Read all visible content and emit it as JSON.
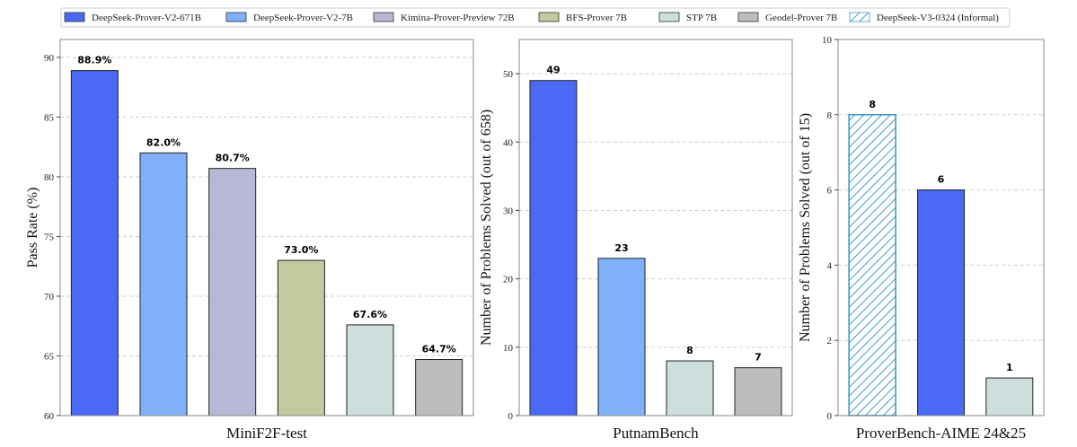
{
  "legend": [
    {
      "name": "DeepSeek-Prover-V2-671B",
      "color": "#4a69f5",
      "hatch": false
    },
    {
      "name": "DeepSeek-Prover-V2-7B",
      "color": "#7fb0f9",
      "hatch": false
    },
    {
      "name": "Kimina-Prover-Preview 72B",
      "color": "#b8b8d6",
      "hatch": false
    },
    {
      "name": "BFS-Prover 7B",
      "color": "#c5c9a0",
      "hatch": false
    },
    {
      "name": "STP 7B",
      "color": "#cddfdd",
      "hatch": false
    },
    {
      "name": "Geodel-Prover 7B",
      "color": "#bdbdbd",
      "hatch": false
    },
    {
      "name": "DeepSeek-V3-0324 (Informal)",
      "color": "#3f9cc9",
      "hatch": true
    }
  ],
  "chart_data": [
    {
      "type": "bar",
      "xlabel": "MiniF2F-test",
      "ylabel": "Pass Rate (%)",
      "ylim": [
        60,
        91.5
      ],
      "yticks": [
        60,
        65,
        70,
        75,
        80,
        85,
        90
      ],
      "grid": "y-dashed",
      "categories": [
        "DeepSeek-Prover-V2-671B",
        "DeepSeek-Prover-V2-7B",
        "Kimina-Prover-Preview 72B",
        "BFS-Prover 7B",
        "STP 7B",
        "Geodel-Prover 7B"
      ],
      "values": [
        88.9,
        82.0,
        80.7,
        73.0,
        67.6,
        64.7
      ],
      "value_labels": [
        "88.9%",
        "82.0%",
        "80.7%",
        "73.0%",
        "67.6%",
        "64.7%"
      ]
    },
    {
      "type": "bar",
      "xlabel": "PutnamBench",
      "ylabel": "Number of Problems Solved (out of 658)",
      "ylim": [
        0,
        55
      ],
      "yticks": [
        0,
        10,
        20,
        30,
        40,
        50
      ],
      "grid": "y-dashed",
      "categories": [
        "DeepSeek-Prover-V2-671B",
        "DeepSeek-Prover-V2-7B",
        "STP 7B",
        "Geodel-Prover 7B"
      ],
      "values": [
        49,
        23,
        8,
        7
      ],
      "value_labels": [
        "49",
        "23",
        "8",
        "7"
      ]
    },
    {
      "type": "bar",
      "xlabel": "ProverBench-AIME 24&25",
      "ylabel": "Number of Problems Solved (out of 15)",
      "ylim": [
        0,
        10
      ],
      "yticks": [
        0,
        2,
        4,
        6,
        8,
        10
      ],
      "grid": "y-dashed",
      "categories": [
        "DeepSeek-V3-0324 (Informal)",
        "DeepSeek-Prover-V2-671B",
        "STP 7B"
      ],
      "values": [
        8,
        6,
        1
      ],
      "value_labels": [
        "8",
        "6",
        "1"
      ]
    }
  ]
}
